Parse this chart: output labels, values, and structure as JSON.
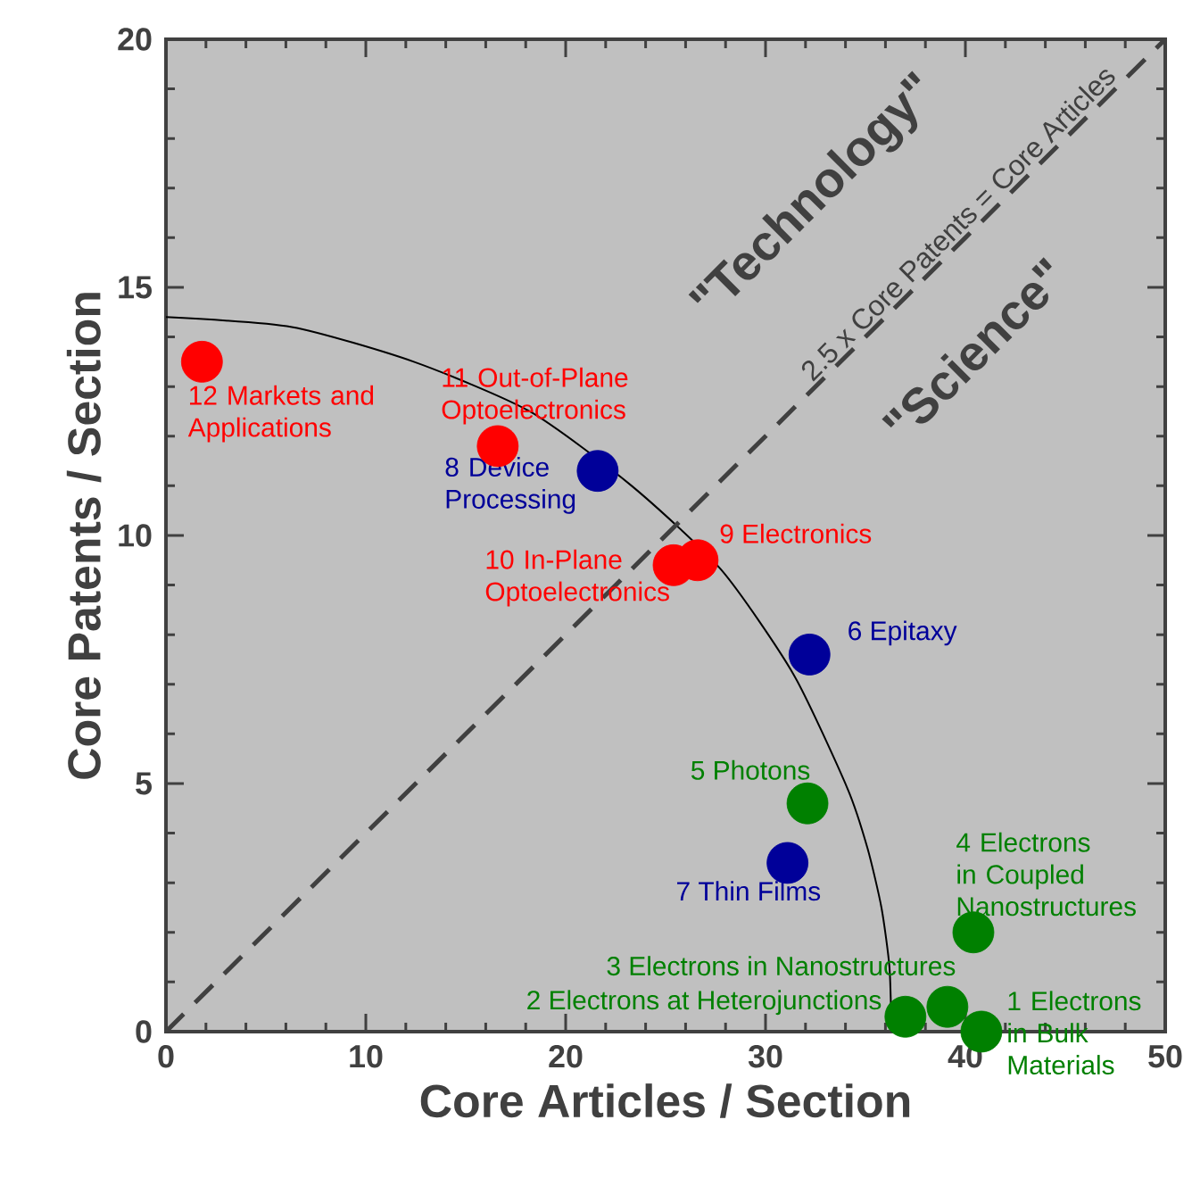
{
  "chart_data": {
    "type": "scatter",
    "xlabel": "Core Articles / Section",
    "ylabel": "Core Patents / Section",
    "xlim": [
      0,
      50
    ],
    "ylim": [
      0,
      20
    ],
    "xticks": [
      0,
      10,
      20,
      30,
      40,
      50
    ],
    "yticks": [
      0,
      5,
      10,
      15,
      20
    ],
    "series": [
      {
        "type": "line",
        "color": "#000000",
        "marker": "none",
        "line_style": "solid",
        "x": [
          0,
          6.3,
          12.4,
          18.2,
          23.3,
          27.8,
          31.4,
          34.1,
          35.1,
          35.8,
          36.2,
          36.3
        ],
        "values": [
          14.4,
          14.2,
          13.5,
          12.5,
          11.0,
          9.3,
          7.2,
          4.9,
          3.7,
          2.5,
          1.3,
          0
        ]
      },
      {
        "type": "line",
        "color": "#404040",
        "marker": "none",
        "line_style": "dashed",
        "x": [
          0,
          40,
          50
        ],
        "values": [
          0,
          16,
          20
        ]
      },
      {
        "type": "scatter",
        "color": "#008000",
        "marker": "circle",
        "x": [
          40.8,
          37.0,
          39.1,
          40.4,
          32.1
        ],
        "values": [
          0,
          0.3,
          0.5,
          2.0,
          4.6
        ]
      },
      {
        "type": "scatter",
        "color": "#000099",
        "marker": "circle",
        "x": [
          21.6,
          32.2,
          31.1
        ],
        "values": [
          11.3,
          7.6,
          3.4
        ]
      },
      {
        "type": "scatter",
        "color": "#ff0000",
        "marker": "circle",
        "x": [
          1.8,
          16.6,
          25.4,
          26.6
        ],
        "values": [
          13.5,
          11.8,
          9.4,
          9.5
        ]
      }
    ],
    "annotations": [
      "\"Technology\"",
      "\"Science\"",
      {
        "text": "2.5 x Core Patents = Core Articles",
        "x": 40,
        "y": 16
      },
      {
        "text": "12 Markets and Applications",
        "x": 1.8,
        "y": 13.5
      },
      {
        "text": "11 Out-of-Plane Optoelectronics",
        "x": 16.6,
        "y": 11.8
      },
      {
        "text": "8 Device Processing",
        "x": 21.6,
        "y": 11.3
      },
      {
        "text": "9 Electronics",
        "x": 26.6,
        "y": 9.5
      },
      {
        "text": "10 In-Plane Optoelectronics",
        "x": 25.4,
        "y": 9.4
      },
      {
        "text": "6 Epitaxy",
        "x": 32.2,
        "y": 7.6
      },
      {
        "text": "5 Photons",
        "x": 32.1,
        "y": 4.6
      },
      {
        "text": "7 Thin Films",
        "x": 31.1,
        "y": 3.4
      },
      {
        "text": "4 Electrons in Coupled Nanostructures",
        "x": 40.4,
        "y": 2.0
      },
      {
        "text": "3 Electrons in Nanostructures",
        "x": 39.1,
        "y": 0.5
      },
      {
        "text": "2 Electrons at Heterojunctions",
        "x": 37.0,
        "y": 0.3
      },
      {
        "text": "1 Electrons in Bulk Materials",
        "x": 40.8,
        "y": 0
      }
    ]
  }
}
